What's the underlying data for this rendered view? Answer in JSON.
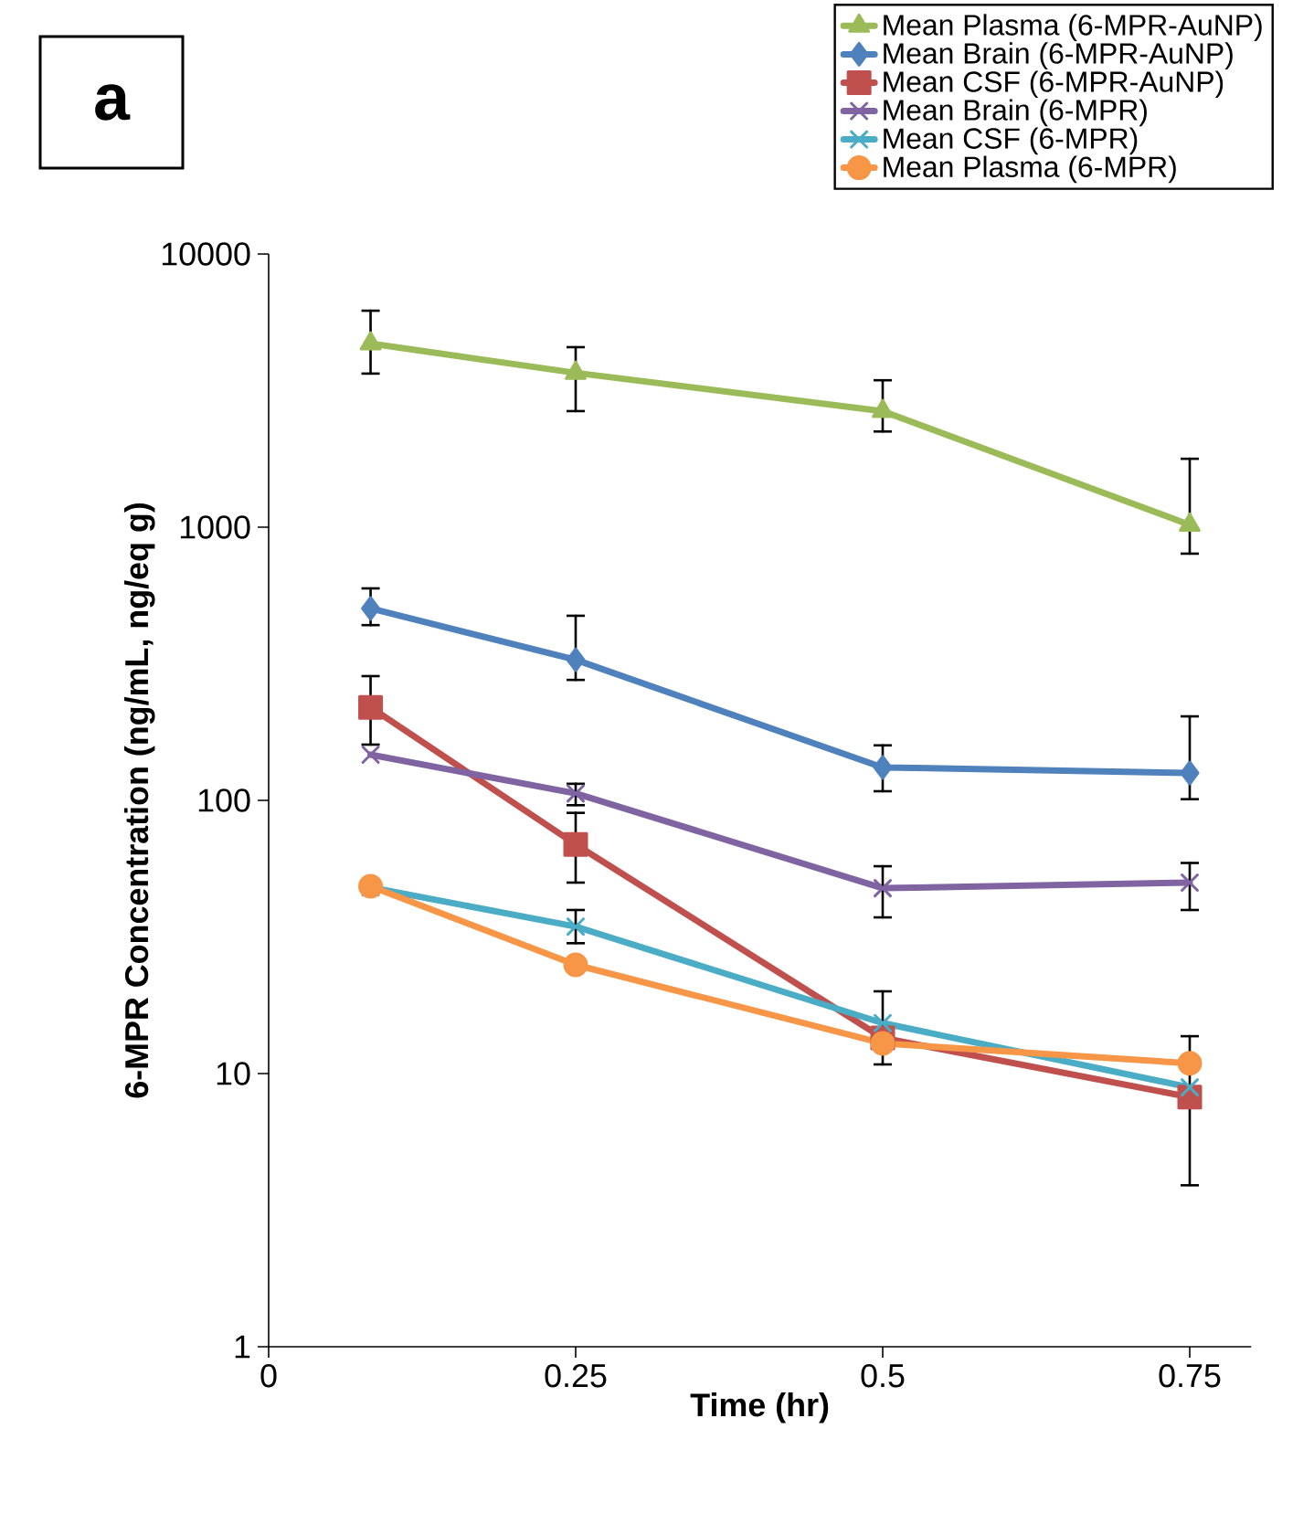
{
  "chart_data": {
    "type": "line",
    "log": "y",
    "xlabel": "Time (hr)",
    "ylabel": "6-MPR Concentration (ng/mL, ng/eq g)",
    "annotations": [
      "a"
    ],
    "x": [
      0.083,
      0.25,
      0.5,
      0.75
    ],
    "xlim": [
      0,
      0.8
    ],
    "xticks": [
      0,
      0.25,
      0.5,
      0.75
    ],
    "ylim": [
      1,
      10000
    ],
    "yticks": [
      1,
      10,
      100,
      1000,
      10000
    ],
    "legend": "top right",
    "grid": false,
    "line_style": "solid",
    "series": [
      {
        "name": "Mean Plasma (6-MPR-AuNP)",
        "color": "#9bbb59",
        "marker": "triangle",
        "values": [
          4700,
          3670,
          2660,
          1020
        ],
        "errors": [
          [
            3650,
            6200
          ],
          [
            2660,
            4560
          ],
          [
            2240,
            3450
          ],
          [
            800,
            1780
          ]
        ]
      },
      {
        "name": "Mean Brain (6-MPR-AuNP)",
        "color": "#4f81bd",
        "marker": "diamond",
        "values": [
          504,
          327,
          132,
          126
        ],
        "errors": [
          [
            438,
            597
          ],
          [
            276,
            474
          ],
          [
            108,
            159
          ],
          [
            101,
            203
          ]
        ]
      },
      {
        "name": "Mean CSF (6-MPR-AuNP)",
        "color": "#c0504d",
        "marker": "square",
        "values": [
          219,
          69,
          13.5,
          8.2
        ],
        "errors": [
          [
            160,
            285
          ],
          [
            50,
            90
          ],
          null,
          [
            3.9,
            13.7
          ]
        ]
      },
      {
        "name": "Mean Brain (6-MPR)",
        "color": "#8064a2",
        "marker": "cross",
        "values": [
          147,
          106,
          47.7,
          50
        ],
        "errors": [
          null,
          [
            96,
            115
          ],
          [
            37.3,
            57.4
          ],
          [
            39.7,
            59
          ]
        ]
      },
      {
        "name": "Mean CSF (6-MPR)",
        "color": "#4bacc6",
        "marker": "cross",
        "values": [
          48,
          34.5,
          15.3,
          8.9
        ],
        "errors": [
          null,
          [
            30,
            39.7
          ],
          [
            10.8,
            20
          ],
          null
        ]
      },
      {
        "name": "Mean Plasma (6-MPR)",
        "color": "#f79646",
        "marker": "circle",
        "values": [
          48.5,
          25,
          12.9,
          10.9
        ]
      }
    ]
  }
}
